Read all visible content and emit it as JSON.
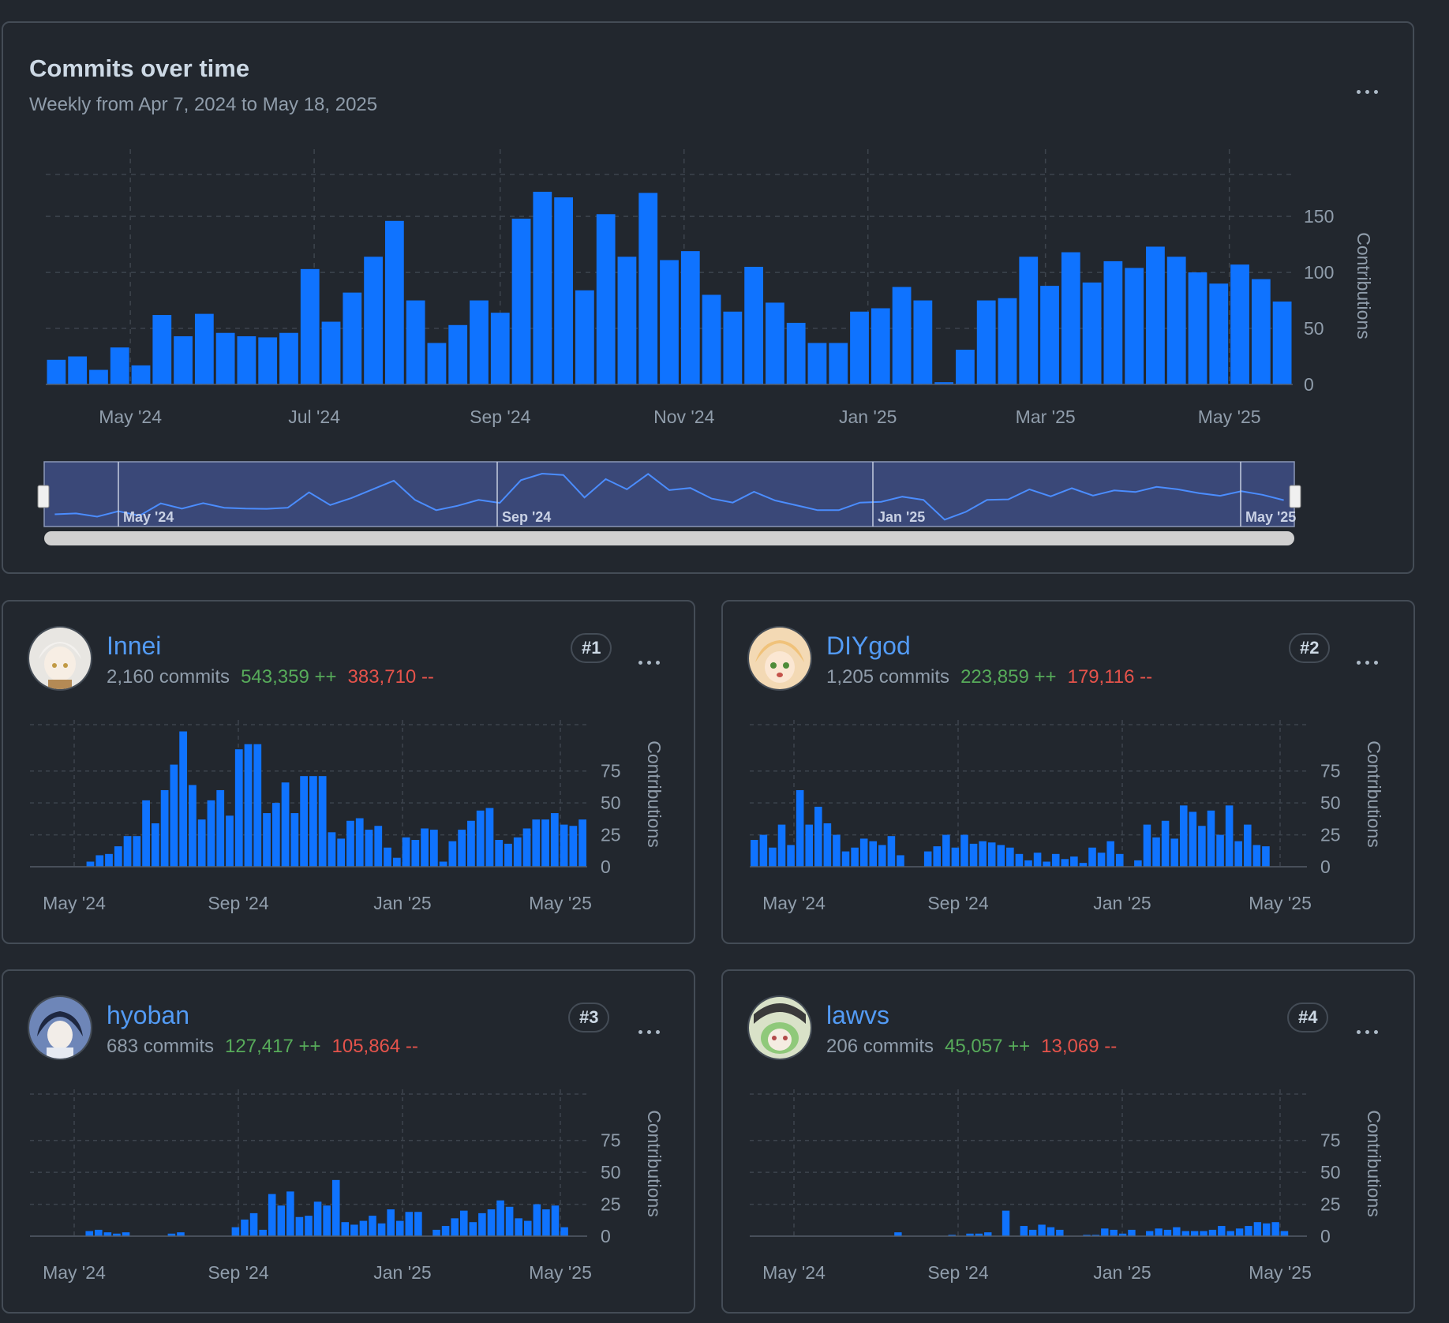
{
  "main": {
    "title": "Commits over time",
    "subtitle": "Weekly from Apr 7, 2024 to May 18, 2025",
    "more_label": "More options"
  },
  "colors": {
    "bar": "#0f73ff",
    "background": "#22272e",
    "border": "#444c56",
    "grid": "#3d444d",
    "axis_text": "#909dab",
    "additions": "#57ab5a",
    "deletions": "#e5534b",
    "link": "#539bf5"
  },
  "chart_data": [
    {
      "type": "bar",
      "title": "Commits over time",
      "ylabel": "Contributions",
      "ylim": [
        0,
        210
      ],
      "yticks": [
        "0",
        "50",
        "100",
        "150"
      ],
      "xticks": [
        {
          "label": "May '24",
          "week": 4
        },
        {
          "label": "Jul '24",
          "week": 12.7
        },
        {
          "label": "Sep '24",
          "week": 21.5
        },
        {
          "label": "Nov '24",
          "week": 30.2
        },
        {
          "label": "Jan '25",
          "week": 38.9
        },
        {
          "label": "Mar '25",
          "week": 47.3
        },
        {
          "label": "May '25",
          "week": 56
        }
      ],
      "values": [
        22,
        25,
        13,
        33,
        17,
        62,
        43,
        63,
        46,
        43,
        42,
        46,
        103,
        56,
        82,
        114,
        146,
        75,
        37,
        53,
        75,
        64,
        148,
        172,
        167,
        84,
        152,
        114,
        171,
        111,
        119,
        80,
        65,
        105,
        73,
        55,
        37,
        37,
        65,
        68,
        87,
        75,
        2,
        31,
        75,
        77,
        114,
        88,
        118,
        91,
        110,
        104,
        123,
        114,
        100,
        90,
        107,
        94,
        74
      ],
      "navigator_labels": [
        "May '24",
        "Sep '24",
        "Jan '25",
        "May '25"
      ]
    },
    {
      "type": "bar",
      "contributor": "Innei",
      "ylabel": "Contributions",
      "ylim": [
        0,
        115
      ],
      "yticks": [
        "0",
        "25",
        "50",
        "75"
      ],
      "xticks": [
        "May '24",
        "Sep '24",
        "Jan '25",
        "May '25"
      ],
      "values": [
        0,
        0,
        0,
        0,
        0,
        0,
        4,
        9,
        10,
        16,
        24,
        24,
        52,
        34,
        60,
        80,
        106,
        64,
        37,
        52,
        60,
        40,
        92,
        96,
        96,
        42,
        50,
        66,
        42,
        71,
        71,
        71,
        27,
        22,
        36,
        38,
        29,
        32,
        15,
        7,
        23,
        21,
        30,
        29,
        4,
        20,
        29,
        36,
        44,
        46,
        21,
        18,
        23,
        30,
        37,
        37,
        42,
        33,
        32,
        37
      ]
    },
    {
      "type": "bar",
      "contributor": "DIYgod",
      "ylabel": "Contributions",
      "ylim": [
        0,
        115
      ],
      "yticks": [
        "0",
        "25",
        "50",
        "75"
      ],
      "xticks": [
        "May '24",
        "Sep '24",
        "Jan '25",
        "May '25"
      ],
      "values": [
        21,
        25,
        15,
        33,
        17,
        60,
        33,
        47,
        34,
        25,
        12,
        15,
        22,
        20,
        17,
        24,
        9,
        0,
        0,
        12,
        16,
        25,
        15,
        25,
        18,
        20,
        19,
        17,
        15,
        10,
        5,
        11,
        4,
        10,
        6,
        8,
        3,
        15,
        11,
        20,
        10,
        0,
        5,
        33,
        23,
        36,
        22,
        48,
        43,
        32,
        44,
        25,
        48,
        20,
        33,
        17,
        16,
        0,
        0,
        0,
        0
      ]
    },
    {
      "type": "bar",
      "contributor": "hyoban",
      "ylabel": "Contributions",
      "ylim": [
        0,
        115
      ],
      "yticks": [
        "0",
        "25",
        "50",
        "75"
      ],
      "xticks": [
        "May '24",
        "Sep '24",
        "Jan '25",
        "May '25"
      ],
      "values": [
        0,
        0,
        0,
        0,
        0,
        0,
        4,
        5,
        3,
        2,
        3,
        0,
        0,
        0,
        0,
        2,
        3,
        0,
        0,
        0,
        0,
        0,
        7,
        13,
        18,
        5,
        33,
        24,
        35,
        15,
        16,
        27,
        24,
        44,
        11,
        9,
        12,
        16,
        10,
        21,
        12,
        19,
        19,
        0,
        5,
        8,
        14,
        20,
        11,
        18,
        21,
        28,
        23,
        14,
        12,
        25,
        21,
        24,
        7,
        0,
        0
      ]
    },
    {
      "type": "bar",
      "contributor": "lawvs",
      "ylabel": "Contributions",
      "ylim": [
        0,
        115
      ],
      "yticks": [
        "0",
        "25",
        "50",
        "75"
      ],
      "xticks": [
        "May '24",
        "Sep '24",
        "Jan '25",
        "May '25"
      ],
      "values": [
        0,
        0,
        0,
        0,
        0,
        0,
        0,
        0,
        0,
        0,
        0,
        0,
        0,
        0,
        0,
        0,
        3,
        0,
        0,
        0,
        0,
        0,
        1,
        0,
        2,
        2,
        3,
        0,
        20,
        0,
        8,
        5,
        9,
        7,
        5,
        0,
        0,
        1,
        1,
        6,
        5,
        2,
        5,
        0,
        4,
        6,
        5,
        7,
        4,
        4,
        4,
        5,
        8,
        4,
        6,
        8,
        11,
        10,
        11,
        4,
        0,
        0
      ]
    }
  ],
  "contributors": [
    {
      "name": "Innei",
      "commits": "2,160 commits",
      "additions": "543,359 ++",
      "deletions": "383,710 --",
      "rank": "#1",
      "avatar": "avatar-light"
    },
    {
      "name": "DIYgod",
      "commits": "1,205 commits",
      "additions": "223,859 ++",
      "deletions": "179,116 --",
      "rank": "#2",
      "avatar": "avatar-peach"
    },
    {
      "name": "hyoban",
      "commits": "683 commits",
      "additions": "127,417 ++",
      "deletions": "105,864 --",
      "rank": "#3",
      "avatar": "avatar-blue"
    },
    {
      "name": "lawvs",
      "commits": "206 commits",
      "additions": "45,057 ++",
      "deletions": "13,069 --",
      "rank": "#4",
      "avatar": "avatar-green"
    }
  ]
}
